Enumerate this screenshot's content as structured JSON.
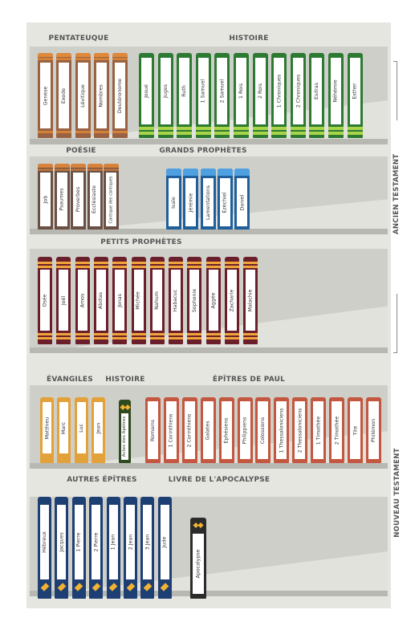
{
  "sections": {
    "ancien_testament": "ANCIEN TESTAMENT",
    "nouveau_testament": "NOUVEAU TESTAMENT"
  },
  "groups": {
    "pentateuque": "PENTATEUQUE",
    "histoire_at": "HISTOIRE",
    "poesie": "POÉSIE",
    "grands_prophetes": "GRANDS PROPHÈTES",
    "petits_prophetes": "PETITS PROPHÈTES",
    "evangiles": "ÉVANGILES",
    "histoire_nt": "HISTOIRE",
    "epitres_paul": "ÉPÎTRES DE PAUL",
    "autres_epitres": "AUTRES ÉPÎTRES",
    "apocalypse": "LIVRE DE L'APOCALYPSE"
  },
  "colors": {
    "pentateuque": "#9a6242",
    "pentateuque_accent": "#e0893a",
    "histoire_at": "#2d7a32",
    "histoire_at_accent": "#a8d44a",
    "poesie": "#6a4f44",
    "poesie_accent": "#d8823a",
    "grands_prophetes": "#1f5f9c",
    "grands_prophetes_accent": "#4ea0e0",
    "petits_prophetes": "#6b1f2b",
    "petits_prophetes_accent": "#f0a53a",
    "evangiles": "#e3a13a",
    "histoire_nt": "#2f4a1e",
    "epitres_paul": "#c3573f",
    "autres_epitres": "#1e3f73",
    "apocalypse": "#2b2b2b"
  },
  "books": {
    "pentateuque": [
      "Genèse",
      "Exode",
      "Lévitique",
      "Nombres",
      "Deutéronome"
    ],
    "histoire_at": [
      "Josué",
      "Juges",
      "Ruth",
      "1 Samuel",
      "2 Samuel",
      "1 Rois",
      "2 Rois",
      "1 Chroniques",
      "2 Chroniques",
      "Esdras",
      "Néhémie",
      "Esther"
    ],
    "poesie": [
      "Job",
      "Psaumes",
      "Proverbes",
      "Ecclésiaste",
      "Cantique des cantiques"
    ],
    "grands_prophetes": [
      "Isaïe",
      "Jérémie",
      "Lamentations",
      "Ézéchiel",
      "Daniel"
    ],
    "petits_prophetes": [
      "Osée",
      "Joël",
      "Amos",
      "Abdias",
      "Jonas",
      "Michée",
      "Nahum",
      "Habacuc",
      "Sophonie",
      "Aggée",
      "Zacharie",
      "Malachie"
    ],
    "evangiles": [
      "Matthieu",
      "Marc",
      "Luc",
      "Jean"
    ],
    "histoire_nt": [
      "Actes des Apôtres"
    ],
    "epitres_paul": [
      "Romains",
      "1 Corinthiens",
      "2 Corinthiens",
      "Galates",
      "Éphésiens",
      "Philippiens",
      "Colossiens",
      "1 Thessaloniciens",
      "2 Thessaloniciens",
      "1 Timothée",
      "2 Timothée",
      "Tite",
      "Philémon"
    ],
    "autres_epitres": [
      "Hébreux",
      "Jacques",
      "1 Pierre",
      "2 Pierre",
      "1 Jean",
      "2 Jean",
      "3 Jean",
      "Jude"
    ],
    "apocalypse": [
      "Apocalypse"
    ]
  }
}
